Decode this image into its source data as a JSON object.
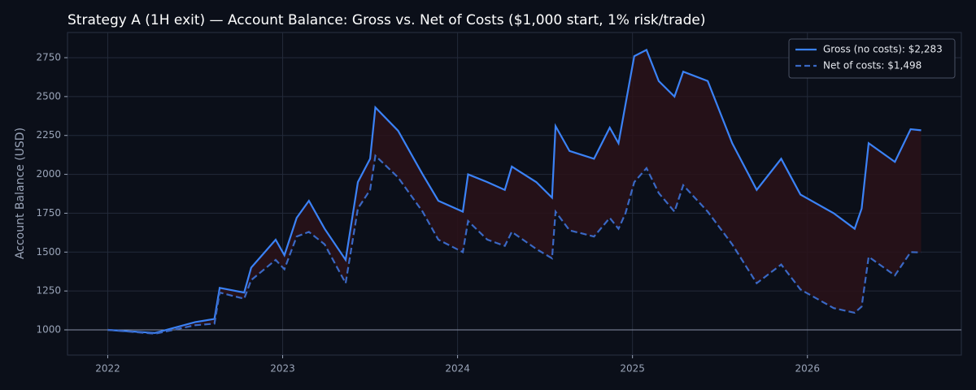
{
  "chart_data": {
    "type": "line",
    "title": "Strategy A (1H exit) — Account Balance: Gross vs. Net of Costs ($1,000 start, 1% risk/trade)",
    "y_label": "Account Balance (USD)",
    "x": [
      2022.0,
      2022.27,
      2022.5,
      2022.61,
      2022.64,
      2022.78,
      2022.82,
      2022.96,
      2023.01,
      2023.08,
      2023.15,
      2023.24,
      2023.36,
      2023.43,
      2023.5,
      2023.53,
      2023.66,
      2023.8,
      2023.89,
      2024.03,
      2024.06,
      2024.17,
      2024.27,
      2024.31,
      2024.45,
      2024.54,
      2024.56,
      2024.64,
      2024.78,
      2024.87,
      2024.92,
      2024.96,
      2025.01,
      2025.08,
      2025.15,
      2025.24,
      2025.29,
      2025.43,
      2025.57,
      2025.71,
      2025.85,
      2025.96,
      2026.15,
      2026.27,
      2026.31,
      2026.35,
      2026.5,
      2026.59,
      2026.65
    ],
    "series": [
      {
        "name": "Gross (no costs): $2,283",
        "color": "#3b82f6",
        "linestyle": "solid",
        "values": [
          1000,
          980,
          1050,
          1070,
          1270,
          1240,
          1400,
          1580,
          1480,
          1720,
          1830,
          1650,
          1450,
          1950,
          2100,
          2430,
          2280,
          2000,
          1830,
          1760,
          2000,
          1950,
          1900,
          2050,
          1950,
          1850,
          2310,
          2150,
          2100,
          2300,
          2200,
          2450,
          2760,
          2800,
          2600,
          2500,
          2660,
          2600,
          2200,
          1900,
          2100,
          1870,
          1750,
          1650,
          1780,
          2200,
          2080,
          2290,
          2283
        ]
      },
      {
        "name": "Net of costs: $1,498",
        "color": "#3a68c4",
        "linestyle": "dashed",
        "values": [
          1000,
          975,
          1030,
          1040,
          1240,
          1200,
          1320,
          1450,
          1390,
          1600,
          1630,
          1550,
          1300,
          1780,
          1900,
          2120,
          1980,
          1760,
          1580,
          1500,
          1700,
          1580,
          1540,
          1630,
          1520,
          1460,
          1760,
          1640,
          1600,
          1720,
          1650,
          1750,
          1950,
          2040,
          1880,
          1760,
          1930,
          1760,
          1550,
          1300,
          1420,
          1260,
          1140,
          1110,
          1150,
          1470,
          1350,
          1500,
          1498
        ]
      }
    ],
    "fill_between_color": "#2a1219",
    "baseline": 1000,
    "xlim": [
      2021.77,
      2026.88
    ],
    "xticks": [
      2022,
      2023,
      2024,
      2025,
      2026
    ],
    "ylim": [
      838,
      2912
    ],
    "yticks": [
      1000,
      1250,
      1500,
      1750,
      2000,
      2250,
      2500,
      2750
    ],
    "grid": true,
    "legend": "upper right"
  }
}
